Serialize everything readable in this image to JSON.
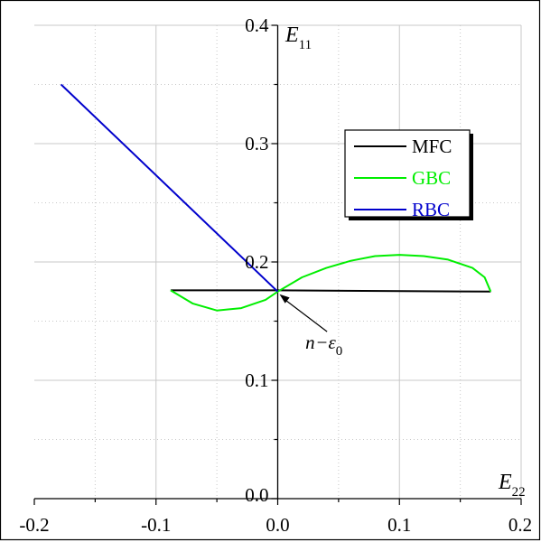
{
  "chart_data": {
    "type": "line",
    "title": "",
    "xlabel": {
      "base": "E",
      "sub": "22"
    },
    "ylabel": {
      "base": "E",
      "sub": "11"
    },
    "xlim": [
      -0.2,
      0.2
    ],
    "ylim": [
      0.0,
      0.4
    ],
    "x_ticks": [
      "-0.2",
      "-0.1",
      "0.0",
      "0.1",
      "0.2"
    ],
    "y_ticks": [
      "0.0",
      "0.1",
      "0.2",
      "0.3",
      "0.4"
    ],
    "grid": true,
    "legend_position": "upper-right",
    "series": [
      {
        "name": "MFC",
        "color": "#000000",
        "points": [
          [
            -0.088,
            0.176
          ],
          [
            0.0,
            0.176
          ],
          [
            0.175,
            0.175
          ]
        ]
      },
      {
        "name": "GBC",
        "color": "#00ee00",
        "points": [
          [
            -0.088,
            0.176
          ],
          [
            -0.07,
            0.165
          ],
          [
            -0.05,
            0.159
          ],
          [
            -0.03,
            0.161
          ],
          [
            -0.01,
            0.168
          ],
          [
            0.0,
            0.175
          ],
          [
            0.02,
            0.187
          ],
          [
            0.04,
            0.195
          ],
          [
            0.06,
            0.201
          ],
          [
            0.08,
            0.205
          ],
          [
            0.1,
            0.206
          ],
          [
            0.12,
            0.205
          ],
          [
            0.14,
            0.202
          ],
          [
            0.16,
            0.195
          ],
          [
            0.17,
            0.187
          ],
          [
            0.175,
            0.175
          ]
        ]
      },
      {
        "name": "RBC",
        "color": "#0000cc",
        "points": [
          [
            -0.178,
            0.35
          ],
          [
            0.0,
            0.175
          ]
        ]
      }
    ],
    "annotations": [
      {
        "text": {
          "base": "n",
          "dash": "−",
          "eps": "ε",
          "sub": "0"
        },
        "point": [
          0.0,
          0.175
        ],
        "text_at": [
          0.045,
          0.135
        ]
      }
    ]
  }
}
